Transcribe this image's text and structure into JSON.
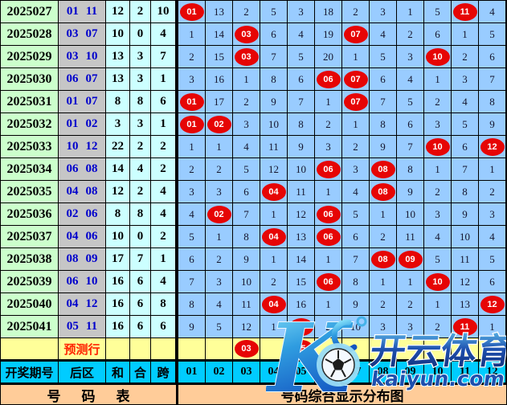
{
  "chart_data": {
    "type": "table",
    "title": "号码综合显示分布图",
    "columns": [
      "01",
      "02",
      "03",
      "04",
      "05",
      "06",
      "07",
      "08",
      "09",
      "10",
      "11",
      "12"
    ],
    "header": {
      "period": "开奖期号",
      "back": "后区",
      "sum": "和",
      "hezhi": "合",
      "kua": "跨"
    },
    "rows": [
      {
        "period": "2025027",
        "back": [
          "01",
          "11"
        ],
        "sum": "12",
        "hezhi": "2",
        "kua": "10",
        "cells": [
          "01",
          "13",
          "2",
          "5",
          "3",
          "18",
          "2",
          "3",
          "1",
          "5",
          "11",
          "4"
        ]
      },
      {
        "period": "2025028",
        "back": [
          "03",
          "07"
        ],
        "sum": "10",
        "hezhi": "0",
        "kua": "4",
        "cells": [
          "1",
          "14",
          "03",
          "6",
          "4",
          "19",
          "07",
          "4",
          "2",
          "6",
          "1",
          "5"
        ]
      },
      {
        "period": "2025029",
        "back": [
          "03",
          "10"
        ],
        "sum": "13",
        "hezhi": "3",
        "kua": "7",
        "cells": [
          "2",
          "15",
          "03",
          "7",
          "5",
          "20",
          "1",
          "5",
          "3",
          "10",
          "2",
          "6"
        ]
      },
      {
        "period": "2025030",
        "back": [
          "06",
          "07"
        ],
        "sum": "13",
        "hezhi": "3",
        "kua": "1",
        "cells": [
          "3",
          "16",
          "1",
          "8",
          "6",
          "06",
          "07",
          "6",
          "4",
          "1",
          "3",
          "7"
        ]
      },
      {
        "period": "2025031",
        "back": [
          "01",
          "07"
        ],
        "sum": "8",
        "hezhi": "8",
        "kua": "6",
        "cells": [
          "01",
          "17",
          "2",
          "9",
          "7",
          "1",
          "07",
          "7",
          "5",
          "2",
          "4",
          "8"
        ]
      },
      {
        "period": "2025032",
        "back": [
          "01",
          "02"
        ],
        "sum": "3",
        "hezhi": "3",
        "kua": "1",
        "cells": [
          "01",
          "02",
          "3",
          "10",
          "8",
          "2",
          "1",
          "8",
          "6",
          "3",
          "5",
          "9"
        ]
      },
      {
        "period": "2025033",
        "back": [
          "10",
          "12"
        ],
        "sum": "22",
        "hezhi": "2",
        "kua": "2",
        "cells": [
          "1",
          "1",
          "4",
          "11",
          "9",
          "3",
          "2",
          "9",
          "7",
          "10",
          "6",
          "12"
        ]
      },
      {
        "period": "2025034",
        "back": [
          "06",
          "08"
        ],
        "sum": "14",
        "hezhi": "4",
        "kua": "2",
        "cells": [
          "2",
          "2",
          "5",
          "12",
          "10",
          "06",
          "3",
          "08",
          "8",
          "1",
          "7",
          "1"
        ]
      },
      {
        "period": "2025035",
        "back": [
          "04",
          "08"
        ],
        "sum": "12",
        "hezhi": "2",
        "kua": "4",
        "cells": [
          "3",
          "3",
          "6",
          "04",
          "11",
          "1",
          "4",
          "08",
          "9",
          "2",
          "8",
          "2"
        ]
      },
      {
        "period": "2025036",
        "back": [
          "02",
          "06"
        ],
        "sum": "8",
        "hezhi": "8",
        "kua": "4",
        "cells": [
          "4",
          "02",
          "7",
          "1",
          "12",
          "06",
          "5",
          "1",
          "10",
          "3",
          "9",
          "3"
        ]
      },
      {
        "period": "2025037",
        "back": [
          "04",
          "06"
        ],
        "sum": "10",
        "hezhi": "0",
        "kua": "2",
        "cells": [
          "5",
          "1",
          "8",
          "04",
          "13",
          "06",
          "6",
          "2",
          "11",
          "4",
          "10",
          "4"
        ]
      },
      {
        "period": "2025038",
        "back": [
          "08",
          "09"
        ],
        "sum": "17",
        "hezhi": "7",
        "kua": "1",
        "cells": [
          "6",
          "2",
          "9",
          "1",
          "14",
          "1",
          "7",
          "08",
          "09",
          "5",
          "11",
          "5"
        ]
      },
      {
        "period": "2025039",
        "back": [
          "06",
          "10"
        ],
        "sum": "16",
        "hezhi": "6",
        "kua": "4",
        "cells": [
          "7",
          "3",
          "10",
          "2",
          "15",
          "06",
          "8",
          "1",
          "1",
          "10",
          "12",
          "6"
        ]
      },
      {
        "period": "2025040",
        "back": [
          "04",
          "12"
        ],
        "sum": "16",
        "hezhi": "6",
        "kua": "8",
        "cells": [
          "8",
          "4",
          "11",
          "04",
          "16",
          "1",
          "9",
          "2",
          "2",
          "1",
          "13",
          "12"
        ]
      },
      {
        "period": "2025041",
        "back": [
          "05",
          "11"
        ],
        "sum": "16",
        "hezhi": "6",
        "kua": "6",
        "cells": [
          "9",
          "5",
          "12",
          "1",
          "05",
          "2",
          "10",
          "3",
          "3",
          "2",
          "11",
          "1"
        ]
      }
    ],
    "prediction": {
      "label": "预测行",
      "hits": [
        "03",
        "05"
      ]
    },
    "footer": {
      "left": "号码表",
      "right": "号码综合显示分布图"
    }
  },
  "watermark": {
    "k": "K",
    "brand": "开云体育",
    "domain": "kaiyun.com"
  },
  "colors": {
    "grid-blue": "#99ccff",
    "row-green": "#ccffcc",
    "col-gray": "#c6c6c6",
    "col-cyan": "#ccffff",
    "row-yellow": "#ffff99",
    "header-cyan": "#00ccff",
    "footer-orange": "#ffcc99",
    "hit-red": "#e60505",
    "back-blue": "#0000cc",
    "pred-red": "#ff2200"
  }
}
